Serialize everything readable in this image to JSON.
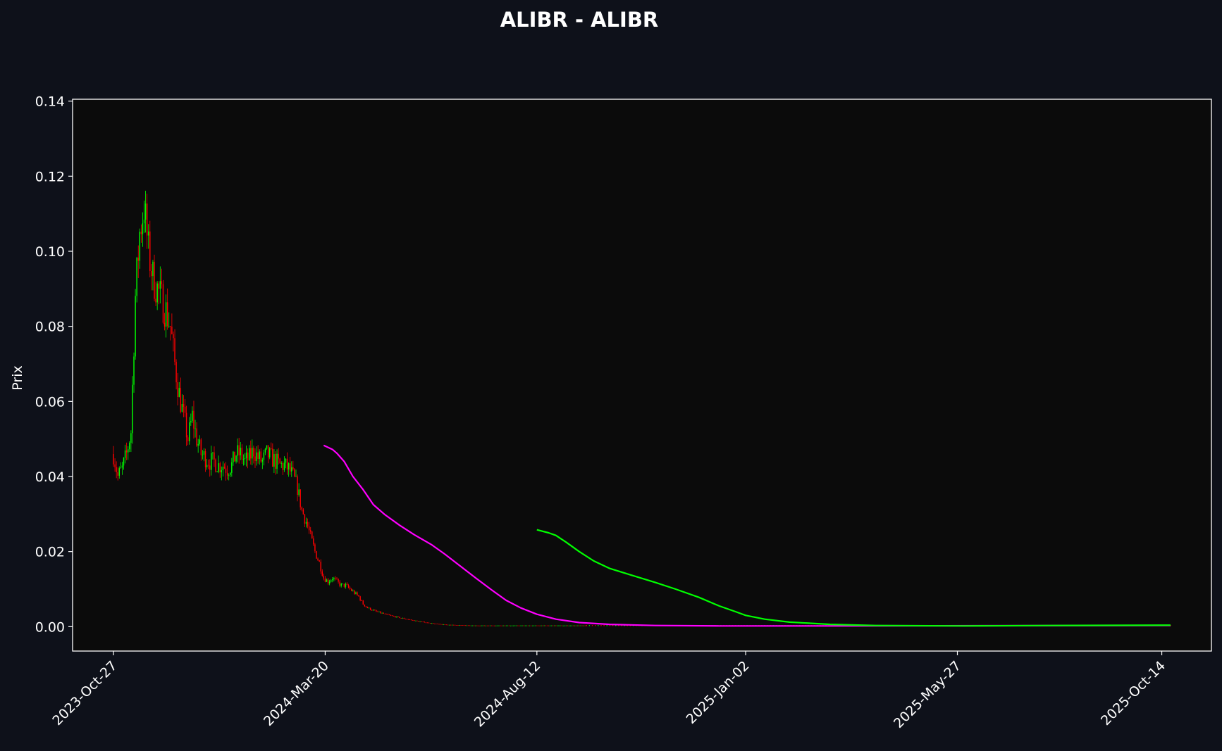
{
  "chart_data": {
    "type": "candlestick",
    "title": "ALIBR - ALIBR",
    "xlabel": "",
    "ylabel": "Prix",
    "ylim": [
      -0.0065,
      0.1405
    ],
    "xlim": [
      "2023-09-29",
      "2025-11-17"
    ],
    "x_ticks": [
      "2023-Oct-27",
      "2024-Mar-20",
      "2024-Aug-12",
      "2025-Jan-02",
      "2025-May-27",
      "2025-Oct-14"
    ],
    "y_ticks": [
      "0.00",
      "0.02",
      "0.04",
      "0.06",
      "0.08",
      "0.10",
      "0.12",
      "0.14"
    ],
    "grid": false,
    "colors": {
      "background": "#0e111a",
      "plot_background": "#0b0b0b",
      "axes": "#ffffff",
      "up": "#00ff00",
      "down": "#ff0000",
      "ma_magenta": "#ff00ff",
      "ma_green": "#00ff00"
    },
    "close_series": [
      [
        "2023-10-27",
        0.046
      ],
      [
        "2023-10-30",
        0.04
      ],
      [
        "2023-11-02",
        0.042
      ],
      [
        "2023-11-05",
        0.046
      ],
      [
        "2023-11-08",
        0.052
      ],
      [
        "2023-11-11",
        0.088
      ],
      [
        "2023-11-14",
        0.105
      ],
      [
        "2023-11-17",
        0.112
      ],
      [
        "2023-11-20",
        0.1
      ],
      [
        "2023-11-23",
        0.093
      ],
      [
        "2023-11-26",
        0.09
      ],
      [
        "2023-11-29",
        0.087
      ],
      [
        "2023-12-02",
        0.084
      ],
      [
        "2023-12-05",
        0.08
      ],
      [
        "2023-12-08",
        0.07
      ],
      [
        "2023-12-11",
        0.062
      ],
      [
        "2023-12-14",
        0.056
      ],
      [
        "2023-12-17",
        0.05
      ],
      [
        "2023-12-20",
        0.056
      ],
      [
        "2023-12-23",
        0.05
      ],
      [
        "2023-12-26",
        0.046
      ],
      [
        "2023-12-29",
        0.045
      ],
      [
        "2024-01-01",
        0.044
      ],
      [
        "2024-01-04",
        0.044
      ],
      [
        "2024-01-07",
        0.043
      ],
      [
        "2024-01-10",
        0.043
      ],
      [
        "2024-01-13",
        0.042
      ],
      [
        "2024-01-16",
        0.043
      ],
      [
        "2024-01-19",
        0.046
      ],
      [
        "2024-01-22",
        0.046
      ],
      [
        "2024-01-25",
        0.044
      ],
      [
        "2024-01-28",
        0.045
      ],
      [
        "2024-01-31",
        0.047
      ],
      [
        "2024-02-03",
        0.045
      ],
      [
        "2024-02-06",
        0.044
      ],
      [
        "2024-02-09",
        0.046
      ],
      [
        "2024-02-12",
        0.045
      ],
      [
        "2024-02-15",
        0.044
      ],
      [
        "2024-02-18",
        0.043
      ],
      [
        "2024-02-21",
        0.043
      ],
      [
        "2024-02-24",
        0.042
      ],
      [
        "2024-02-27",
        0.04
      ],
      [
        "2024-03-01",
        0.037
      ],
      [
        "2024-03-04",
        0.031
      ],
      [
        "2024-03-07",
        0.028
      ],
      [
        "2024-03-10",
        0.024
      ],
      [
        "2024-03-13",
        0.02
      ],
      [
        "2024-03-16",
        0.017
      ],
      [
        "2024-03-19",
        0.013
      ],
      [
        "2024-03-22",
        0.012
      ],
      [
        "2024-03-25",
        0.013
      ],
      [
        "2024-03-28",
        0.012
      ],
      [
        "2024-03-31",
        0.011
      ],
      [
        "2024-04-03",
        0.011
      ],
      [
        "2024-04-06",
        0.01
      ],
      [
        "2024-04-09",
        0.009
      ],
      [
        "2024-04-12",
        0.008
      ],
      [
        "2024-04-15",
        0.006
      ],
      [
        "2024-04-18",
        0.005
      ],
      [
        "2024-04-21",
        0.0045
      ],
      [
        "2024-04-24",
        0.004
      ],
      [
        "2024-04-27",
        0.0037
      ],
      [
        "2024-04-30",
        0.0033
      ],
      [
        "2024-05-05",
        0.0028
      ],
      [
        "2024-05-10",
        0.0024
      ],
      [
        "2024-05-15",
        0.002
      ],
      [
        "2024-05-20",
        0.0016
      ],
      [
        "2024-05-25",
        0.0013
      ],
      [
        "2024-05-30",
        0.001
      ],
      [
        "2024-06-05",
        0.0007
      ],
      [
        "2024-06-12",
        0.0005
      ],
      [
        "2024-06-20",
        0.0004
      ],
      [
        "2024-06-28",
        0.0003
      ],
      [
        "2024-07-10",
        0.0003
      ],
      [
        "2024-07-25",
        0.0003
      ],
      [
        "2024-08-10",
        0.0003
      ],
      [
        "2024-08-25",
        0.0003
      ],
      [
        "2024-09-15",
        0.0003
      ]
    ],
    "series": [
      {
        "name": "",
        "color": "#ff00ff",
        "points": [
          [
            "2024-03-19",
            0.0483
          ],
          [
            "2024-03-25",
            0.0472
          ],
          [
            "2024-03-28",
            0.0462
          ],
          [
            "2024-04-02",
            0.044
          ],
          [
            "2024-04-08",
            0.04
          ],
          [
            "2024-04-15",
            0.0365
          ],
          [
            "2024-04-22",
            0.0325
          ],
          [
            "2024-04-30",
            0.0298
          ],
          [
            "2024-05-10",
            0.027
          ],
          [
            "2024-05-20",
            0.0245
          ],
          [
            "2024-06-01",
            0.0218
          ],
          [
            "2024-06-10",
            0.0193
          ],
          [
            "2024-06-20",
            0.0163
          ],
          [
            "2024-07-01",
            0.013
          ],
          [
            "2024-07-12",
            0.0098
          ],
          [
            "2024-07-22",
            0.007
          ],
          [
            "2024-08-01",
            0.005
          ],
          [
            "2024-08-12",
            0.0033
          ],
          [
            "2024-08-25",
            0.002
          ],
          [
            "2024-09-10",
            0.0011
          ],
          [
            "2024-10-01",
            0.0006
          ],
          [
            "2024-11-01",
            0.0003
          ],
          [
            "2024-12-15",
            0.0002
          ],
          [
            "2025-03-01",
            0.0002
          ],
          [
            "2025-10-20",
            0.0003
          ]
        ]
      },
      {
        "name": "",
        "color": "#00ff00",
        "points": [
          [
            "2024-08-12",
            0.0258
          ],
          [
            "2024-08-20",
            0.025
          ],
          [
            "2024-08-25",
            0.0243
          ],
          [
            "2024-09-01",
            0.0225
          ],
          [
            "2024-09-10",
            0.02
          ],
          [
            "2024-09-20",
            0.0175
          ],
          [
            "2024-10-01",
            0.0155
          ],
          [
            "2024-10-15",
            0.0138
          ],
          [
            "2024-11-01",
            0.0118
          ],
          [
            "2024-11-15",
            0.01
          ],
          [
            "2024-12-01",
            0.0078
          ],
          [
            "2024-12-15",
            0.0055
          ],
          [
            "2024-12-26",
            0.004
          ],
          [
            "2025-01-02",
            0.003
          ],
          [
            "2025-01-15",
            0.002
          ],
          [
            "2025-02-01",
            0.0012
          ],
          [
            "2025-03-01",
            0.0006
          ],
          [
            "2025-04-01",
            0.0003
          ],
          [
            "2025-06-01",
            0.0002
          ],
          [
            "2025-08-01",
            0.0003
          ],
          [
            "2025-10-20",
            0.0004
          ]
        ]
      }
    ]
  }
}
